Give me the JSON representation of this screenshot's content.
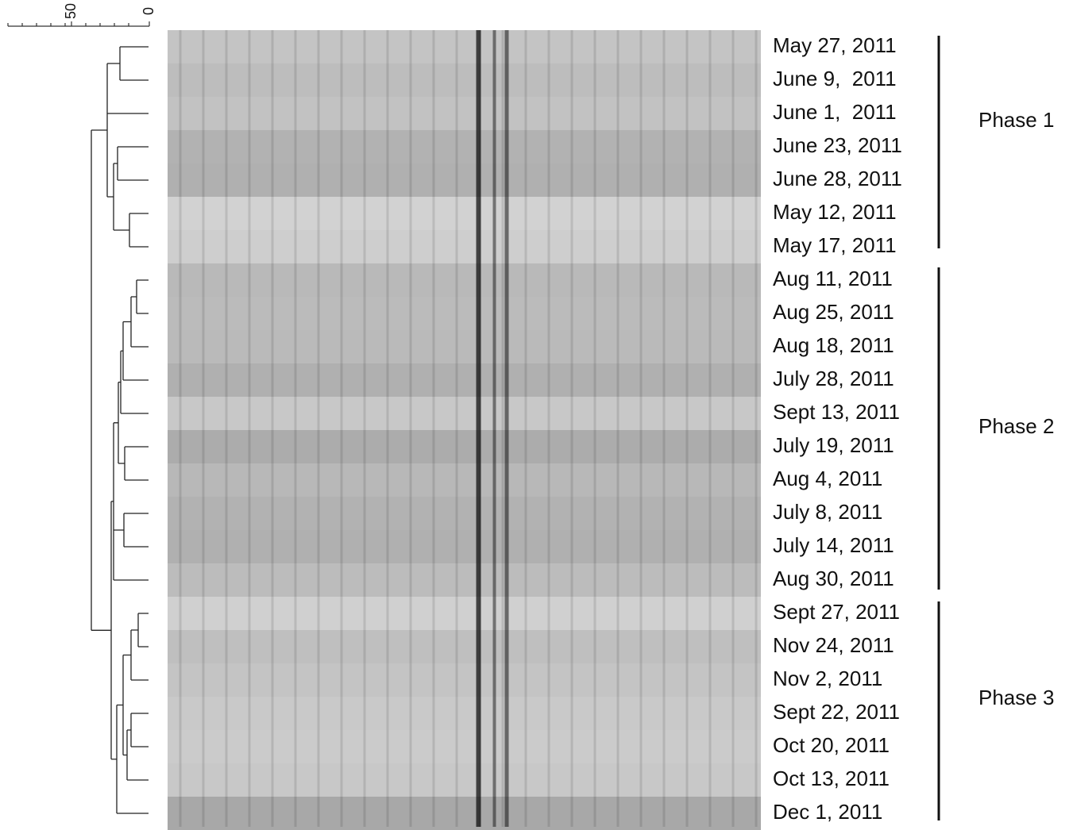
{
  "scale": {
    "ticks": [
      "50",
      "0"
    ]
  },
  "lanes": [
    "May 27, 2011",
    "June 9,  2011",
    "June 1,  2011",
    "June 23, 2011",
    "June 28, 2011",
    "May 12, 2011",
    "May 17, 2011",
    "Aug 11, 2011",
    "Aug 25, 2011",
    "Aug 18, 2011",
    "July 28, 2011",
    "Sept 13, 2011",
    "July 19, 2011",
    "Aug 4, 2011",
    "July 8, 2011",
    "July 14, 2011",
    "Aug 30, 2011",
    "Sept 27, 2011",
    "Nov 24, 2011",
    "Nov 2, 2011",
    "Sept 22, 2011",
    "Oct 20, 2011",
    "Oct 13, 2011",
    "Dec 1, 2011"
  ],
  "phases": [
    {
      "label": "Phase 1"
    },
    {
      "label": "Phase 2"
    },
    {
      "label": "Phase 3"
    }
  ]
}
